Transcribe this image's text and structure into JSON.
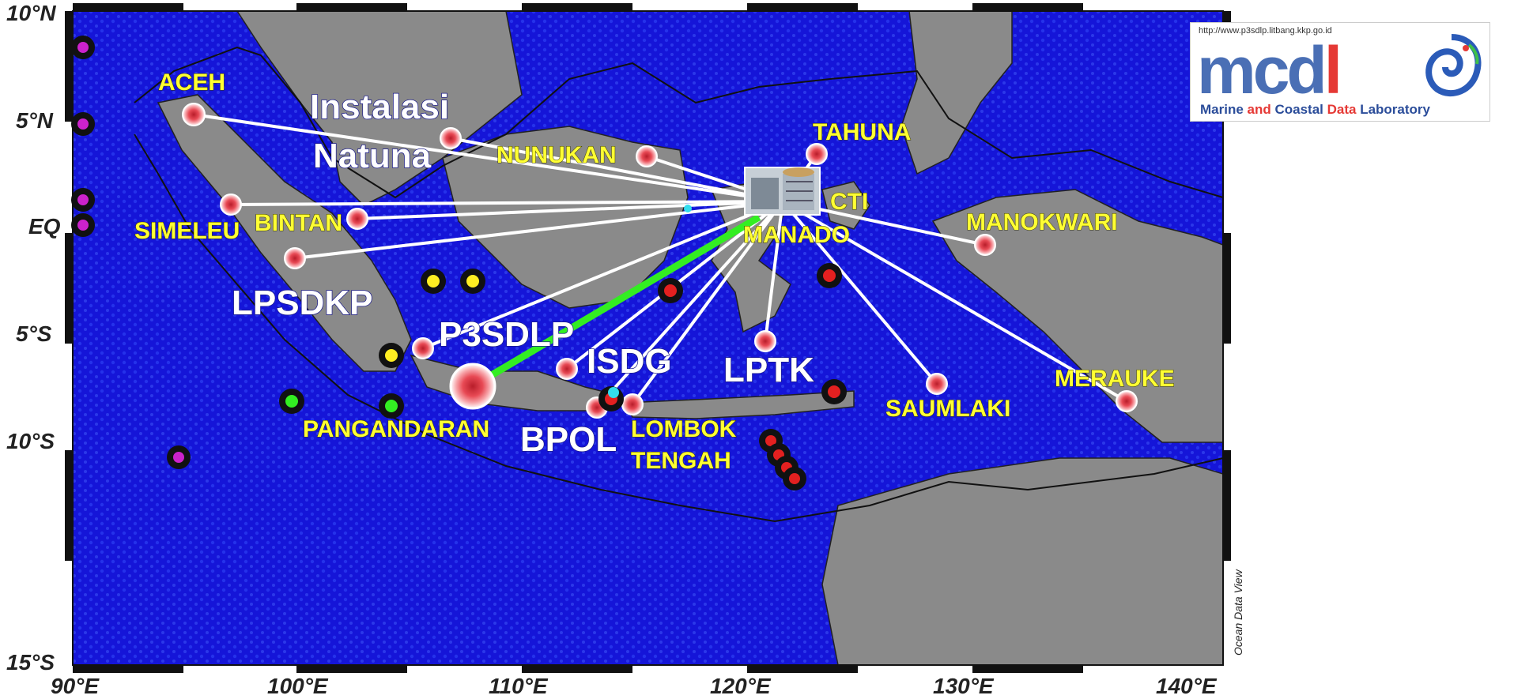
{
  "map": {
    "lat_ticks": [
      "10°N",
      "5°N",
      "EQ",
      "5°S",
      "10°S",
      "15°S"
    ],
    "lon_ticks": [
      "90°E",
      "100°E",
      "110°E",
      "120°E",
      "130°E",
      "140°E"
    ],
    "credit": "Ocean Data View",
    "colors": {
      "ocean": "#1515d8",
      "land": "#8a8a8a",
      "dots": "#2a3cf0",
      "links": "#ffffff",
      "green_link": "#33ee22",
      "label_yellow": "#ffff33",
      "station_red": "#e84a55"
    }
  },
  "logo": {
    "url": "http://www.p3sdlp.litbang.kkp.go.id",
    "word_main": "mcd",
    "word_accent": "l",
    "tagline_a": "Marine ",
    "tagline_b": "and ",
    "tagline_c": "Coastal ",
    "tagline_d": "Data ",
    "tagline_e": "Laboratory"
  },
  "stations": [
    {
      "name": "ACEH"
    },
    {
      "name": "SIMELEU"
    },
    {
      "name": "BINTAN"
    },
    {
      "name": "NUNUKAN"
    },
    {
      "name": "TAHUNA"
    },
    {
      "name": "CTI"
    },
    {
      "name": "MANADO"
    },
    {
      "name": "MANOKWARI"
    },
    {
      "name": "PANGANDARAN"
    },
    {
      "name": "LOMBOK"
    },
    {
      "name": "TENGAH"
    },
    {
      "name": "SAUMLAKI"
    },
    {
      "name": "MERAUKE"
    }
  ],
  "facilities": {
    "instalasi_1": "Instalasi",
    "instalasi_2": "Natuna",
    "lpsdkp": "LPSDKP",
    "p3sdlp": "P3SDLP",
    "isdg": "ISDG",
    "lptk": "LPTK",
    "bpol": "BPOL"
  }
}
